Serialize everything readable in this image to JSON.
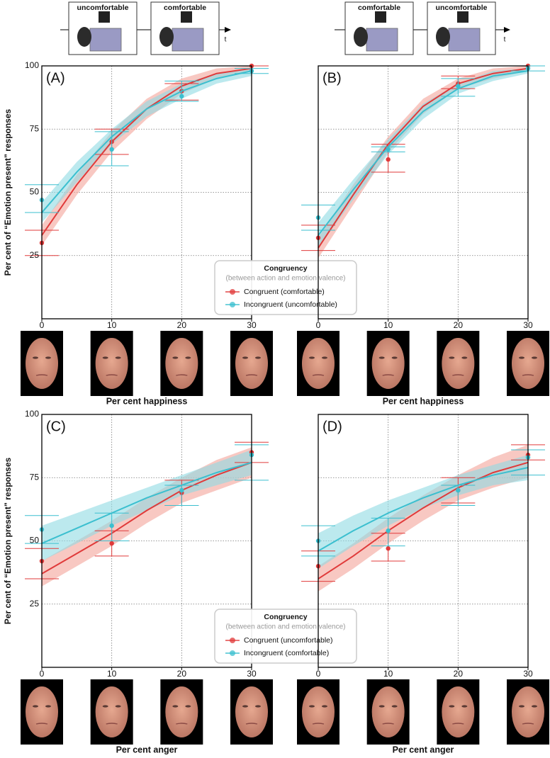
{
  "schematics": [
    {
      "labels": [
        "uncomfortable",
        "comfortable"
      ],
      "arrow_label": "t"
    },
    {
      "labels": [
        "comfortable",
        "uncomfortable"
      ],
      "arrow_label": "t"
    }
  ],
  "chart_data": [
    {
      "type": "line",
      "panel_label": "(A)",
      "xlabel": "Per cent happiness",
      "ylabel": "Per cent of “Emotion present” responses",
      "x": [
        0,
        10,
        20,
        30
      ],
      "xlim": [
        0,
        30
      ],
      "xticks": [
        0,
        10,
        20,
        30
      ],
      "ylim": [
        0,
        100
      ],
      "yticks": [
        25,
        50,
        75,
        100
      ],
      "grid": true,
      "legend": {
        "title": "Congruency",
        "subtitle": "(between action and emotion valence)"
      },
      "fit_x": [
        0,
        5,
        10,
        15,
        20,
        25,
        30
      ],
      "series": [
        {
          "name": "Congruent (comfortable)",
          "color": "#e03a3a",
          "band_color": "#f4a39a",
          "values": [
            30,
            70,
            90,
            100
          ],
          "error_upper": [
            35,
            75,
            93,
            100
          ],
          "error_lower": [
            25,
            65,
            86.5,
            100
          ],
          "fit": [
            33,
            53,
            70,
            83,
            92,
            97,
            99
          ],
          "fit_upper": [
            37,
            57,
            74,
            87,
            95,
            99,
            100
          ],
          "fit_lower": [
            29,
            49,
            66,
            79,
            89,
            95,
            98
          ]
        },
        {
          "name": "Incongruent (uncomfortable)",
          "color": "#3bbfcf",
          "band_color": "#8fdbe3",
          "values": [
            47,
            67,
            88,
            98
          ],
          "error_upper": [
            53,
            74,
            94,
            99
          ],
          "error_lower": [
            42,
            60.5,
            86,
            97
          ],
          "fit": [
            42,
            58,
            72,
            83,
            90,
            95,
            98
          ],
          "fit_upper": [
            46,
            62,
            75,
            86,
            93,
            97,
            99
          ],
          "fit_lower": [
            38,
            54,
            69,
            80,
            87,
            93,
            96
          ]
        }
      ]
    },
    {
      "type": "line",
      "panel_label": "(B)",
      "xlabel": "Per cent happiness",
      "x": [
        0,
        10,
        20,
        30
      ],
      "xlim": [
        0,
        30
      ],
      "xticks": [
        0,
        10,
        20,
        30
      ],
      "ylim": [
        0,
        100
      ],
      "yticks": [
        25,
        50,
        75,
        100
      ],
      "grid": true,
      "fit_x": [
        0,
        5,
        10,
        15,
        20,
        25,
        30
      ],
      "series": [
        {
          "color": "#e03a3a",
          "band_color": "#f4a39a",
          "values": [
            32,
            63,
            93,
            100
          ],
          "error_upper": [
            37,
            69,
            96,
            100
          ],
          "error_lower": [
            27,
            58,
            91,
            100
          ],
          "fit": [
            28,
            49,
            69,
            84,
            93,
            97,
            99
          ],
          "fit_upper": [
            32,
            53,
            72,
            87,
            95,
            99,
            100
          ],
          "fit_lower": [
            24,
            45,
            66,
            81,
            91,
            95,
            98
          ]
        },
        {
          "color": "#3bbfcf",
          "band_color": "#8fdbe3",
          "values": [
            40,
            67,
            92,
            99
          ],
          "error_upper": [
            45,
            68,
            95,
            100
          ],
          "error_lower": [
            35,
            66,
            88,
            98
          ],
          "fit": [
            33,
            51,
            68,
            82,
            91,
            96,
            98
          ],
          "fit_upper": [
            38,
            55,
            71,
            85,
            93,
            98,
            99
          ],
          "fit_lower": [
            28,
            47,
            65,
            79,
            89,
            94,
            97
          ]
        }
      ]
    },
    {
      "type": "line",
      "panel_label": "(C)",
      "xlabel": "Per cent anger",
      "ylabel": "Per cent of “Emotion present” responses",
      "x": [
        0,
        10,
        20,
        30
      ],
      "xlim": [
        0,
        30
      ],
      "xticks": [
        0,
        10,
        20,
        30
      ],
      "ylim": [
        0,
        100
      ],
      "yticks": [
        25,
        50,
        75,
        100
      ],
      "grid": true,
      "legend": {
        "title": "Congruency",
        "subtitle": "(between action and emotion valence)"
      },
      "fit_x": [
        0,
        5,
        10,
        15,
        20,
        25,
        30
      ],
      "series": [
        {
          "name": "Congruent (uncomfortable)",
          "color": "#e03a3a",
          "band_color": "#f4a39a",
          "values": [
            42,
            49,
            69,
            85
          ],
          "error_upper": [
            47,
            54,
            74,
            89
          ],
          "error_lower": [
            35,
            44,
            64,
            81
          ],
          "fit": [
            37,
            45,
            53,
            62,
            70,
            76,
            81
          ],
          "fit_upper": [
            42,
            50,
            58,
            67,
            75,
            82,
            87
          ],
          "fit_lower": [
            32,
            40,
            48,
            57,
            65,
            70,
            75
          ]
        },
        {
          "name": "Incongruent (comfortable)",
          "color": "#3bbfcf",
          "band_color": "#8fdbe3",
          "values": [
            54.5,
            56,
            70,
            84
          ],
          "error_upper": [
            60,
            61,
            72,
            88
          ],
          "error_lower": [
            49,
            50,
            64,
            74
          ],
          "fit": [
            49,
            55,
            61,
            67,
            72,
            77,
            81
          ],
          "fit_upper": [
            56,
            61,
            66,
            71,
            76,
            81,
            86
          ],
          "fit_lower": [
            42,
            49,
            56,
            62,
            68,
            72,
            76
          ]
        }
      ]
    },
    {
      "type": "line",
      "panel_label": "(D)",
      "xlabel": "Per cent anger",
      "x": [
        0,
        10,
        20,
        30
      ],
      "xlim": [
        0,
        30
      ],
      "xticks": [
        0,
        10,
        20,
        30
      ],
      "ylim": [
        0,
        100
      ],
      "yticks": [
        25,
        50,
        75,
        100
      ],
      "grid": true,
      "fit_x": [
        0,
        5,
        10,
        15,
        20,
        25,
        30
      ],
      "series": [
        {
          "color": "#e03a3a",
          "band_color": "#f4a39a",
          "values": [
            40,
            47,
            70,
            84
          ],
          "error_upper": [
            46,
            53,
            75,
            88
          ],
          "error_lower": [
            34,
            42,
            65,
            82
          ],
          "fit": [
            35,
            44,
            54,
            63,
            71,
            77,
            81
          ],
          "fit_upper": [
            40,
            49,
            59,
            68,
            76,
            83,
            88
          ],
          "fit_lower": [
            30,
            39,
            49,
            58,
            66,
            71,
            75
          ]
        },
        {
          "color": "#3bbfcf",
          "band_color": "#8fdbe3",
          "values": [
            50,
            54,
            70,
            83
          ],
          "error_upper": [
            56,
            59,
            72,
            86
          ],
          "error_lower": [
            44,
            48,
            64,
            76
          ],
          "fit": [
            46,
            54,
            61,
            67,
            72,
            76,
            79
          ],
          "fit_upper": [
            53,
            60,
            66,
            71,
            76,
            80,
            84
          ],
          "fit_lower": [
            39,
            48,
            56,
            63,
            68,
            72,
            74
          ]
        }
      ]
    }
  ]
}
